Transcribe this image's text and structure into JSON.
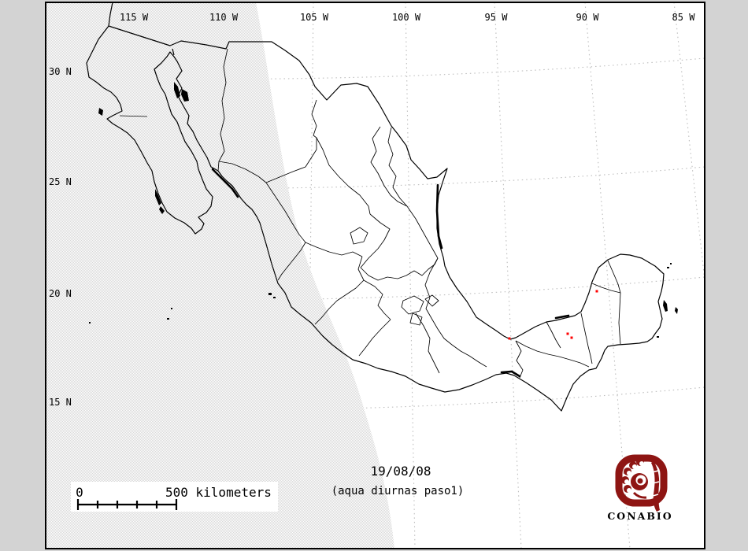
{
  "map": {
    "axis": {
      "meridian_labels": [
        "115 W",
        "110 W",
        "105 W",
        "100 W",
        "95 W",
        "90 W",
        "85 W"
      ],
      "parallel_labels": [
        "30 N",
        "25 N",
        "20 N",
        "15 N"
      ]
    },
    "scale_bar": {
      "start_label": "0",
      "end_label": "500 kilometers"
    },
    "date": "19/08/08",
    "subtitle": "(aqua diurnas paso1)",
    "logo": {
      "text": "CONABIO"
    },
    "fires": [
      [
        758,
        370
      ],
      [
        721,
        424
      ],
      [
        726,
        429
      ],
      [
        647,
        430
      ]
    ],
    "colors": {
      "fire": "#ff0000",
      "logo_red": "#8e1513",
      "background": "#d3d3d3",
      "map_background": "#ffffff",
      "grid_dots": "#bdbdbd",
      "outline": "#000000",
      "swath_dither": "#d8d8d8"
    }
  }
}
